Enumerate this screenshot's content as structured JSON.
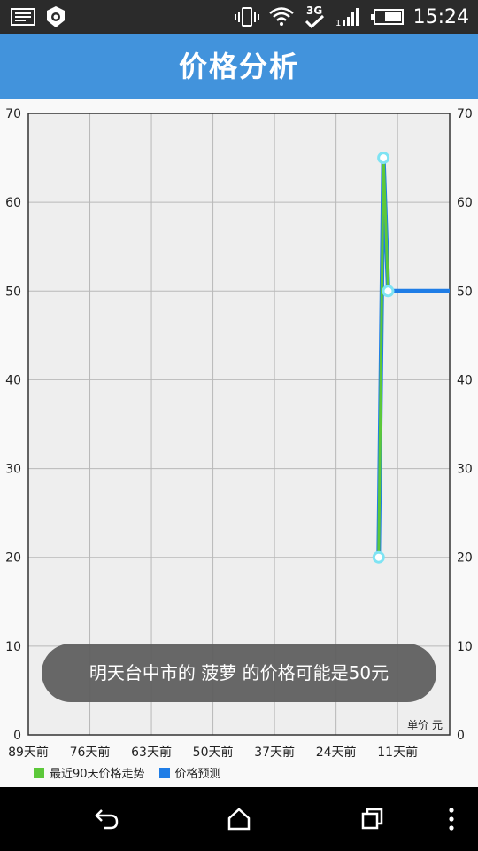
{
  "status_bar": {
    "time": "15:24",
    "network": "3G",
    "icons": [
      "gallery-icon",
      "settings-icon",
      "vibrate-icon",
      "wifi-icon",
      "network-3g-icon",
      "signal-icon",
      "battery-icon"
    ]
  },
  "header": {
    "title": "价格分析"
  },
  "toast": {
    "message": "明天台中市的 菠萝 的价格可能是50元"
  },
  "chart": {
    "unit_label": "单价 元",
    "legend": [
      {
        "name": "最近90天价格走势",
        "color": "#5cc83a"
      },
      {
        "name": "价格预测",
        "color": "#1f7de6"
      }
    ]
  },
  "chart_data": {
    "type": "line",
    "title": "",
    "ylim": [
      0,
      70
    ],
    "yticks": [
      0,
      10,
      20,
      30,
      40,
      50,
      60,
      70
    ],
    "xticks": [
      "89天前",
      "76天前",
      "63天前",
      "50天前",
      "37天前",
      "24天前",
      "11天前"
    ],
    "xtick_values": [
      -89,
      -76,
      -63,
      -50,
      -37,
      -24,
      -11
    ],
    "xlim": [
      -89,
      0
    ],
    "grid": true,
    "legend_position": "bottom-left",
    "series": [
      {
        "name": "最近90天价格走势",
        "color": "#5cc83a",
        "points": [
          [
            -15,
            20
          ],
          [
            -14,
            65
          ],
          [
            -13,
            50
          ]
        ]
      },
      {
        "name": "价格预测",
        "color": "#1f7de6",
        "points": [
          [
            -15,
            20
          ],
          [
            -14,
            65
          ],
          [
            -13,
            50
          ],
          [
            0,
            50
          ]
        ]
      }
    ]
  },
  "nav_bar": {
    "icons": [
      "back-icon",
      "home-icon",
      "recents-icon",
      "more-icon"
    ]
  }
}
